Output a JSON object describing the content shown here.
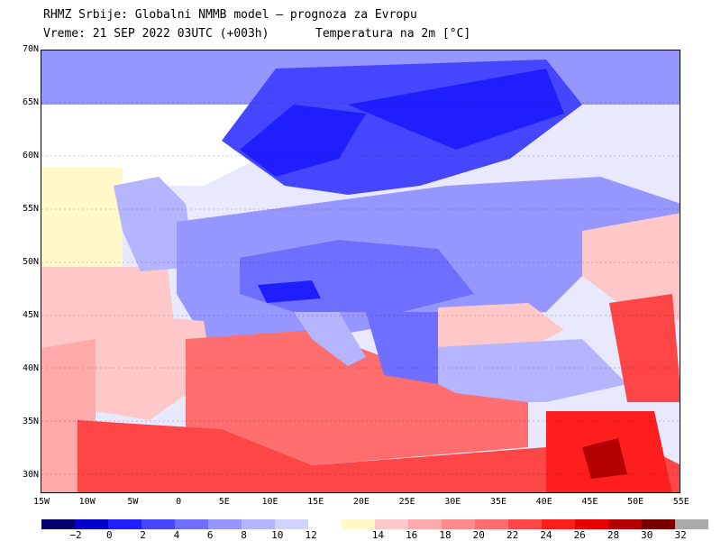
{
  "header": {
    "line1": "RHMZ Srbije: Globalni NMMB model — prognoza za Evropu",
    "line2_left": "Vreme: 21 SEP 2022 03UTC (+003h)",
    "line2_right": "Temperatura na 2m [°C]"
  },
  "axes": {
    "lat_labels": [
      "70N",
      "65N",
      "60N",
      "55N",
      "50N",
      "45N",
      "40N",
      "35N",
      "30N"
    ],
    "lon_labels": [
      "15W",
      "10W",
      "5W",
      "0",
      "5E",
      "10E",
      "15E",
      "20E",
      "25E",
      "30E",
      "35E",
      "40E",
      "45E",
      "50E",
      "55E"
    ]
  },
  "colorbar": {
    "colors": [
      "#00006e",
      "#0000c8",
      "#1e1eff",
      "#4646ff",
      "#6e6eff",
      "#9696ff",
      "#b4b4ff",
      "#d2d2ff",
      "#ffffff",
      "#fff8c8",
      "#ffc8c8",
      "#ffaaaa",
      "#ff8c8c",
      "#ff6e6e",
      "#ff4646",
      "#ff1e1e",
      "#e60000",
      "#b40000",
      "#780000",
      "#aaaaaa"
    ],
    "labels": [
      "−2",
      "0",
      "2",
      "4",
      "6",
      "8",
      "10",
      "12",
      "14",
      "16",
      "18",
      "20",
      "22",
      "24",
      "26",
      "28",
      "30",
      "32"
    ]
  },
  "map_layers": {
    "sea_mediterranean_color": "#ff6e6e",
    "north_africa_color": "#ff4646",
    "central_europe_color": "#9696ff",
    "scandinavia_color": "#1e1eff",
    "atlantic_color": "#ffffff",
    "black_sea_color": "#ffc8c8"
  }
}
